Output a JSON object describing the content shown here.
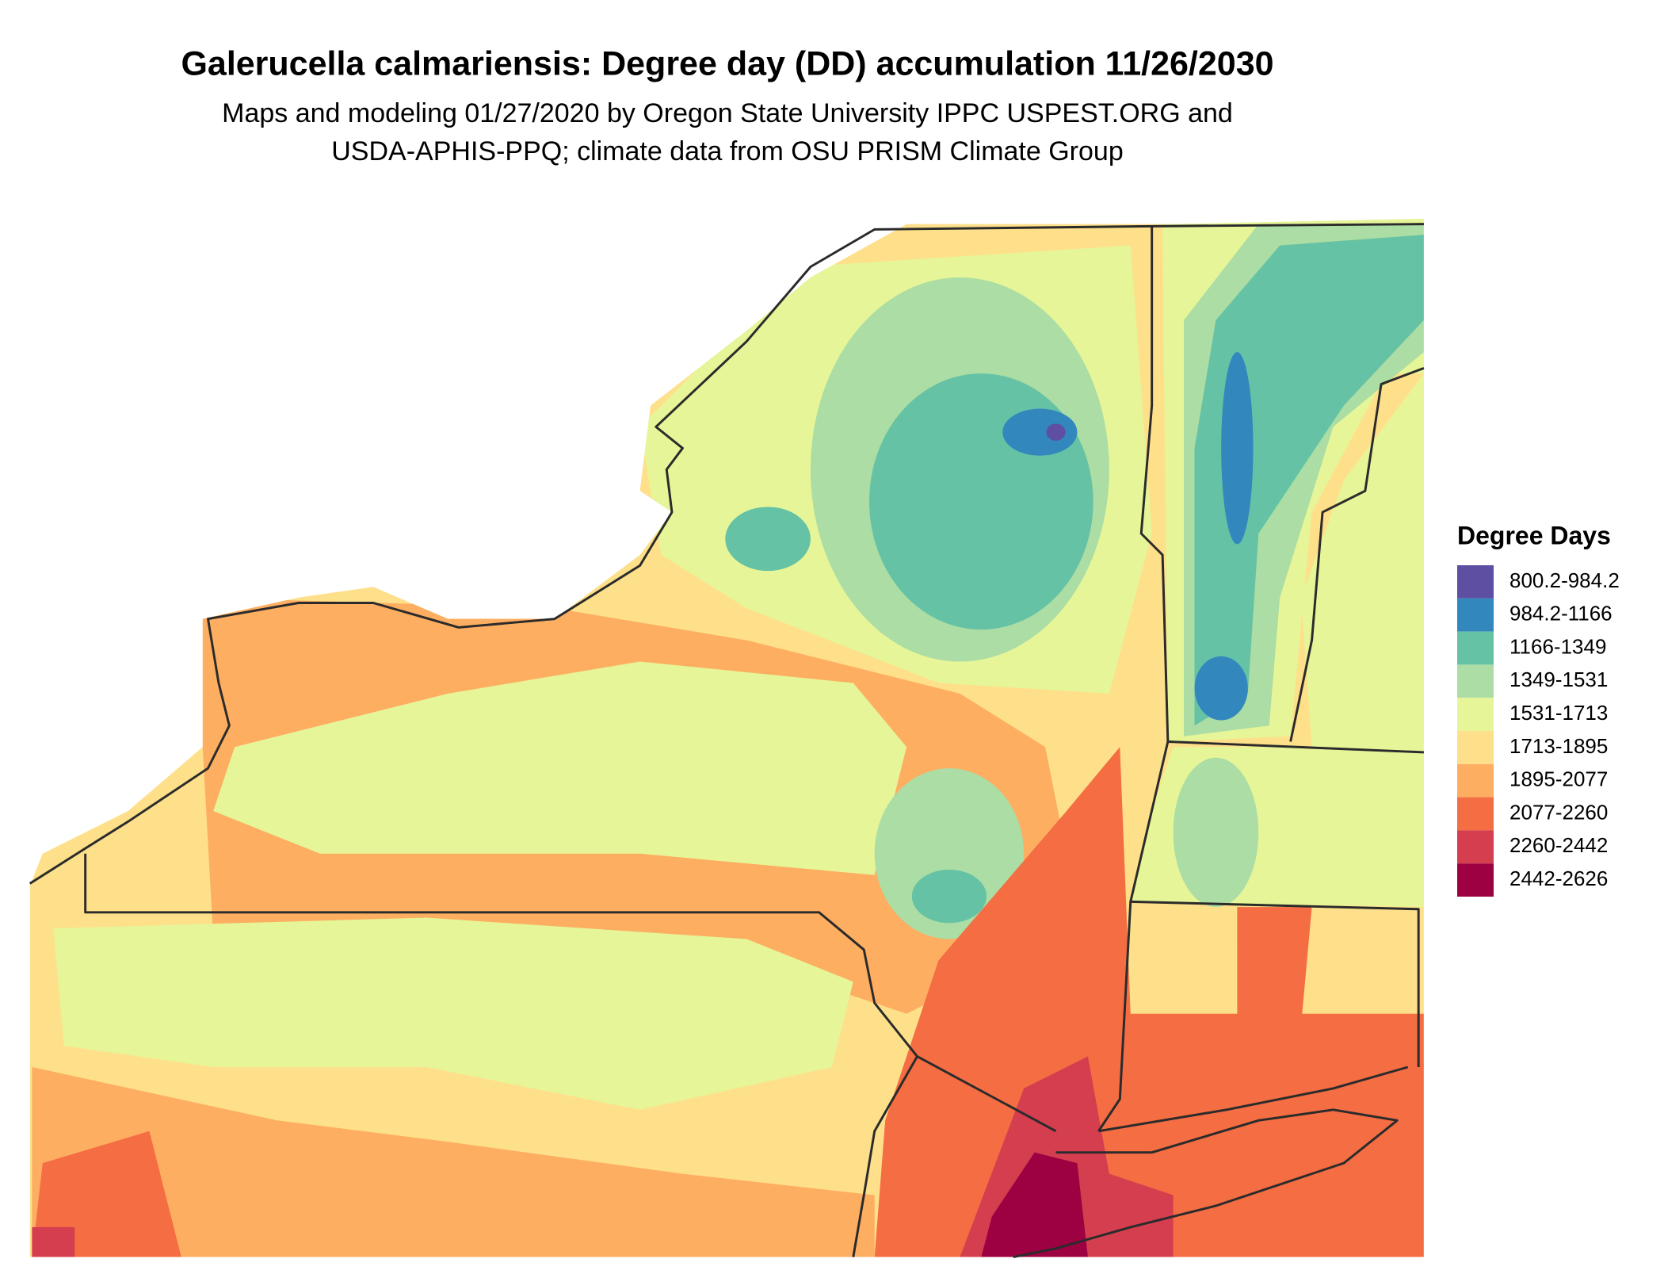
{
  "header": {
    "title": "Galerucella calmariensis: Degree day (DD) accumulation 11/26/2030",
    "subtitle_lines": [
      "Maps and modeling 01/27/2020 by Oregon State University IPPC USPEST.ORG and",
      "USDA-APHIS-PPQ; climate data from OSU PRISM Climate Group"
    ]
  },
  "legend": {
    "title": "Degree Days",
    "items": [
      {
        "label": "800.2-984.2",
        "color": "#5e4fa2"
      },
      {
        "label": "984.2-1166",
        "color": "#3288bd"
      },
      {
        "label": "1166-1349",
        "color": "#66c2a5"
      },
      {
        "label": "1349-1531",
        "color": "#abdda4"
      },
      {
        "label": "1531-1713",
        "color": "#e6f598"
      },
      {
        "label": "1713-1895",
        "color": "#fee08b"
      },
      {
        "label": "1895-2077",
        "color": "#fdae61"
      },
      {
        "label": "2077-2260",
        "color": "#f46d43"
      },
      {
        "label": "2260-2442",
        "color": "#d53e4f"
      },
      {
        "label": "2442-2626",
        "color": "#9e0142"
      }
    ]
  }
}
